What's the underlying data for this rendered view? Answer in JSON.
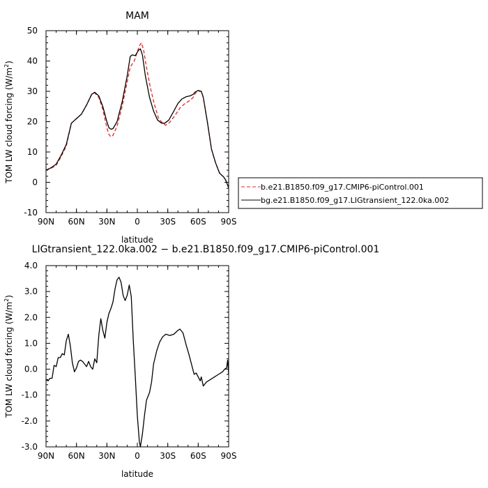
{
  "chart_data": [
    {
      "type": "line",
      "title": "MAM",
      "xlabel": "latitude",
      "ylabel_main": "TOM LW cloud forcing (W/m",
      "ylabel_sup": "2",
      "ylabel_close": ")",
      "x_ticks": [
        "90N",
        "60N",
        "30N",
        "0",
        "30S",
        "60S",
        "90S"
      ],
      "y_ticks": [
        "-10",
        "0",
        "10",
        "20",
        "30",
        "40",
        "50"
      ],
      "xlim": [
        90,
        -90
      ],
      "ylim": [
        -10,
        50
      ],
      "grid": false,
      "legend_position": "right",
      "series": [
        {
          "name": "b.e21.B1850.f09_g17.CMIP6-piControl.001",
          "color": "#e8201f",
          "dash": "dashed",
          "points": [
            [
              90,
              4
            ],
            [
              85,
              4.6
            ],
            [
              80,
              5.6
            ],
            [
              75,
              8.5
            ],
            [
              70,
              12
            ],
            [
              65,
              19.5
            ],
            [
              60,
              21
            ],
            [
              55,
              22.5
            ],
            [
              50,
              25.5
            ],
            [
              45,
              29
            ],
            [
              42,
              29.5
            ],
            [
              38,
              28
            ],
            [
              34,
              24
            ],
            [
              30,
              18
            ],
            [
              28,
              15.8
            ],
            [
              26,
              15
            ],
            [
              24,
              15.5
            ],
            [
              20,
              18.5
            ],
            [
              15,
              25
            ],
            [
              10,
              33
            ],
            [
              7,
              38
            ],
            [
              3,
              40
            ],
            [
              1,
              42
            ],
            [
              -2,
              45
            ],
            [
              -4,
              46
            ],
            [
              -6,
              44
            ],
            [
              -9,
              38
            ],
            [
              -13,
              31
            ],
            [
              -17,
              25.5
            ],
            [
              -21,
              21
            ],
            [
              -25,
              19.5
            ],
            [
              -28,
              18.8
            ],
            [
              -32,
              19.8
            ],
            [
              -37,
              22
            ],
            [
              -42,
              24.5
            ],
            [
              -47,
              26
            ],
            [
              -52,
              27
            ],
            [
              -55,
              28
            ],
            [
              -57,
              29.3
            ],
            [
              -60,
              30
            ],
            [
              -63,
              30
            ],
            [
              -65,
              28
            ],
            [
              -69,
              20
            ],
            [
              -73,
              11
            ],
            [
              -77,
              6.5
            ],
            [
              -81,
              3
            ],
            [
              -85,
              1.8
            ],
            [
              -87,
              0.8
            ],
            [
              -90,
              -1.8
            ]
          ]
        },
        {
          "name": "bg.e21.B1850.f09_g17.LIGtransient_122.0ka.002",
          "color": "#000000",
          "dash": "solid",
          "points": [
            [
              90,
              4
            ],
            [
              85,
              4.8
            ],
            [
              80,
              6
            ],
            [
              75,
              9
            ],
            [
              70,
              12.5
            ],
            [
              65,
              19.5
            ],
            [
              60,
              21
            ],
            [
              55,
              22.5
            ],
            [
              50,
              25.5
            ],
            [
              45,
              29
            ],
            [
              42,
              29.7
            ],
            [
              38,
              28.5
            ],
            [
              34,
              25
            ],
            [
              30,
              20
            ],
            [
              28,
              18
            ],
            [
              26,
              17.5
            ],
            [
              24,
              17.7
            ],
            [
              20,
              20
            ],
            [
              15,
              26.5
            ],
            [
              10,
              35
            ],
            [
              7,
              41.5
            ],
            [
              5,
              42
            ],
            [
              2,
              41.8
            ],
            [
              -1,
              43.5
            ],
            [
              -3,
              44
            ],
            [
              -5,
              42
            ],
            [
              -8,
              35
            ],
            [
              -12,
              28
            ],
            [
              -16,
              23.5
            ],
            [
              -20,
              20.5
            ],
            [
              -24,
              19.5
            ],
            [
              -27,
              19.5
            ],
            [
              -31,
              20.5
            ],
            [
              -36,
              23.5
            ],
            [
              -40,
              26
            ],
            [
              -44,
              27.5
            ],
            [
              -48,
              28.2
            ],
            [
              -52,
              28.5
            ],
            [
              -55,
              29
            ],
            [
              -57,
              29.8
            ],
            [
              -60,
              30.3
            ],
            [
              -63,
              30
            ],
            [
              -65,
              28
            ],
            [
              -69,
              20
            ],
            [
              -73,
              11
            ],
            [
              -77,
              6.5
            ],
            [
              -81,
              3
            ],
            [
              -85,
              1.8
            ],
            [
              -87,
              0.8
            ],
            [
              -90,
              -1.8
            ]
          ]
        }
      ]
    },
    {
      "type": "line",
      "title": "LIGtransient_122.0ka.002 − b.e21.B1850.f09_g17.CMIP6-piControl.001",
      "xlabel": "latitude",
      "ylabel_main": "TOM LW cloud forcing (W/m",
      "ylabel_sup": "2",
      "ylabel_close": ")",
      "x_ticks": [
        "90N",
        "60N",
        "30N",
        "0",
        "30S",
        "60S",
        "90S"
      ],
      "y_ticks": [
        "-3.0",
        "-2.0",
        "-1.0",
        "0.0",
        "1.0",
        "2.0",
        "3.0",
        "4.0"
      ],
      "xlim": [
        90,
        -90
      ],
      "ylim": [
        -3,
        4
      ],
      "grid": false,
      "series": [
        {
          "color": "#000000",
          "dash": "solid",
          "points": [
            [
              90,
              -0.4
            ],
            [
              88,
              -0.45
            ],
            [
              86,
              -0.35
            ],
            [
              84,
              -0.35
            ],
            [
              82,
              0.15
            ],
            [
              80,
              0.1
            ],
            [
              78,
              0.45
            ],
            [
              76,
              0.45
            ],
            [
              74,
              0.6
            ],
            [
              72,
              0.55
            ],
            [
              70,
              1.1
            ],
            [
              68,
              1.35
            ],
            [
              66,
              0.9
            ],
            [
              64,
              0.25
            ],
            [
              62,
              -0.1
            ],
            [
              60,
              0.05
            ],
            [
              58,
              0.3
            ],
            [
              56,
              0.35
            ],
            [
              54,
              0.3
            ],
            [
              52,
              0.2
            ],
            [
              50,
              0.1
            ],
            [
              48,
              0.3
            ],
            [
              46,
              0.1
            ],
            [
              44,
              0.0
            ],
            [
              42,
              0.4
            ],
            [
              40,
              0.25
            ],
            [
              38,
              1.3
            ],
            [
              36,
              1.95
            ],
            [
              34,
              1.5
            ],
            [
              32,
              1.2
            ],
            [
              30,
              1.8
            ],
            [
              28,
              2.15
            ],
            [
              26,
              2.35
            ],
            [
              24,
              2.6
            ],
            [
              22,
              3.1
            ],
            [
              20,
              3.45
            ],
            [
              18,
              3.55
            ],
            [
              16,
              3.35
            ],
            [
              14,
              2.85
            ],
            [
              12,
              2.65
            ],
            [
              10,
              2.85
            ],
            [
              8,
              3.25
            ],
            [
              6,
              2.8
            ],
            [
              4,
              1.1
            ],
            [
              2,
              -0.3
            ],
            [
              0,
              -1.8
            ],
            [
              -2,
              -2.8
            ],
            [
              -3,
              -3.0
            ],
            [
              -5,
              -2.5
            ],
            [
              -7,
              -1.8
            ],
            [
              -9,
              -1.2
            ],
            [
              -12,
              -0.9
            ],
            [
              -14,
              -0.5
            ],
            [
              -16,
              0.2
            ],
            [
              -19,
              0.7
            ],
            [
              -22,
              1.05
            ],
            [
              -25,
              1.25
            ],
            [
              -28,
              1.35
            ],
            [
              -32,
              1.3
            ],
            [
              -36,
              1.35
            ],
            [
              -40,
              1.5
            ],
            [
              -42,
              1.55
            ],
            [
              -45,
              1.4
            ],
            [
              -48,
              0.95
            ],
            [
              -51,
              0.55
            ],
            [
              -54,
              0.1
            ],
            [
              -56,
              -0.2
            ],
            [
              -58,
              -0.15
            ],
            [
              -60,
              -0.3
            ],
            [
              -62,
              -0.45
            ],
            [
              -63,
              -0.3
            ],
            [
              -65,
              -0.65
            ],
            [
              -68,
              -0.5
            ],
            [
              -72,
              -0.4
            ],
            [
              -76,
              -0.3
            ],
            [
              -80,
              -0.2
            ],
            [
              -84,
              -0.1
            ],
            [
              -86,
              0.0
            ],
            [
              -88,
              0.05
            ],
            [
              -89,
              0.35
            ],
            [
              -90,
              -0.2
            ]
          ]
        }
      ]
    }
  ]
}
